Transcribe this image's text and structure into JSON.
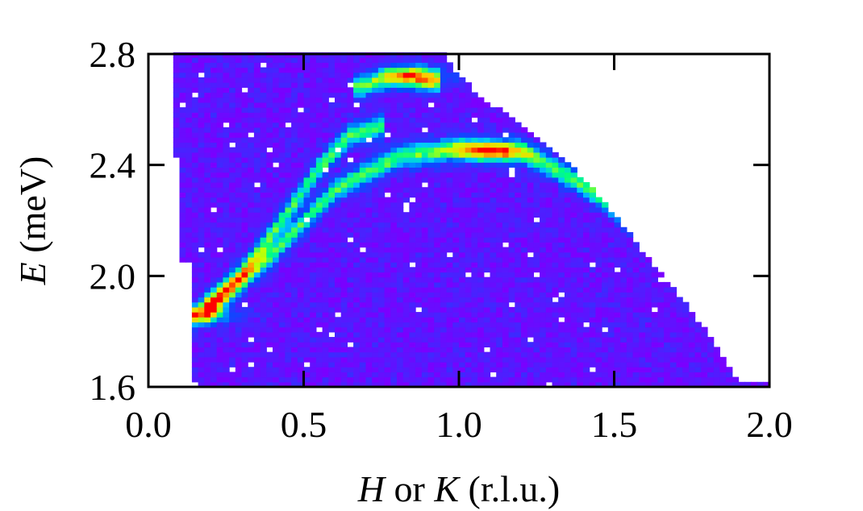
{
  "chart_data": {
    "type": "heatmap",
    "title": "",
    "xlabel_var": "H",
    "xlabel_mid": " or ",
    "xlabel_var2": "K",
    "xlabel_unit": " (r.l.u.)",
    "ylabel_var": "E",
    "ylabel_unit": " (meV)",
    "xlim": [
      0.0,
      2.0
    ],
    "ylim": [
      1.6,
      2.8
    ],
    "xticks": [
      0.0,
      0.5,
      1.0,
      1.5,
      2.0
    ],
    "xtick_labels": [
      "0.0",
      "0.5",
      "1.0",
      "1.5",
      "2.0"
    ],
    "yticks": [
      1.6,
      2.0,
      2.4,
      2.8
    ],
    "ytick_labels": [
      "1.6",
      "2.0",
      "2.4",
      "2.8"
    ],
    "colormap": [
      "#7a00ff",
      "#3a2cff",
      "#0050ff",
      "#00c8ff",
      "#00ff80",
      "#c8ff00",
      "#ffc800",
      "#ff0000"
    ],
    "background_intensity": 0.06,
    "dispersion_branches": [
      {
        "x": [
          0.15,
          0.3,
          0.45,
          0.55,
          0.65,
          0.75
        ],
        "E": [
          1.86,
          2.01,
          2.23,
          2.39,
          2.51,
          2.54
        ]
      },
      {
        "x": [
          0.2,
          0.4,
          0.6,
          0.8,
          1.0,
          1.2,
          1.4,
          1.6,
          1.75
        ],
        "E": [
          1.88,
          2.08,
          2.31,
          2.43,
          2.46,
          2.45,
          2.33,
          2.16,
          2.05
        ]
      },
      {
        "x": [
          0.68,
          0.78,
          0.85,
          0.92
        ],
        "E": [
          2.68,
          2.72,
          2.72,
          2.7
        ]
      }
    ],
    "hot_spots": [
      {
        "x": 1.1,
        "E": 2.45,
        "intensity": 1.0
      },
      {
        "x": 0.17,
        "E": 1.86,
        "intensity": 0.95
      },
      {
        "x": 0.87,
        "E": 2.72,
        "intensity": 0.85
      }
    ],
    "coverage_upper_edge": {
      "x": [
        0.07,
        0.95,
        1.0,
        1.1,
        1.2,
        1.3,
        1.4,
        1.5,
        1.6,
        1.7,
        1.8,
        1.9
      ],
      "E": [
        2.8,
        2.8,
        2.72,
        2.62,
        2.55,
        2.46,
        2.35,
        2.22,
        2.08,
        1.94,
        1.8,
        1.62
      ]
    },
    "coverage_left_edge": {
      "E": [
        1.6,
        2.04,
        2.05,
        2.8
      ],
      "x": [
        0.14,
        0.14,
        0.11,
        0.07
      ]
    },
    "grid": false,
    "legend": "none"
  }
}
